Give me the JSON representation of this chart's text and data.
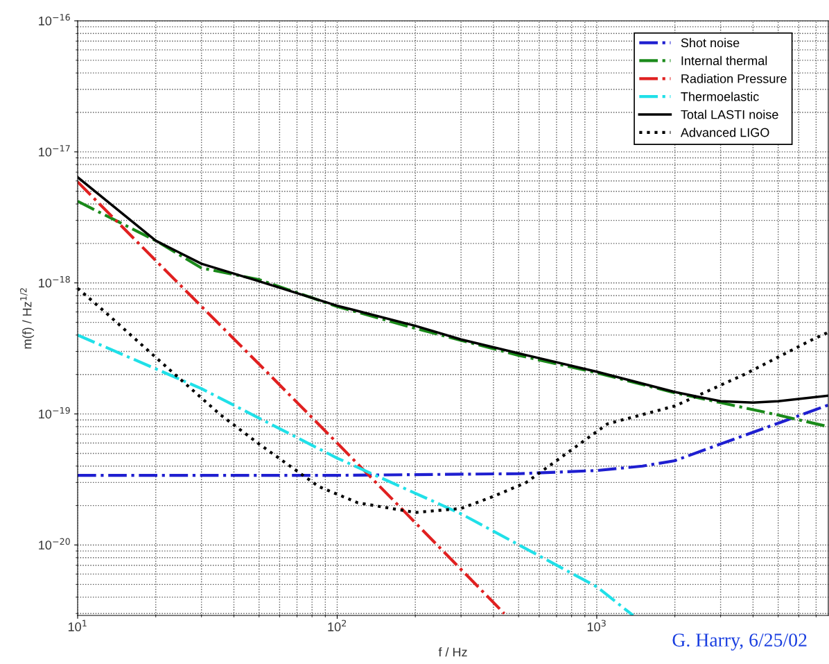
{
  "chart_data": {
    "type": "line",
    "xlabel": "f / Hz",
    "ylabel": "m(f) / Hz$^{1/2}$",
    "log": "xy",
    "grid": true,
    "legend": "top right",
    "xlim": [
      10,
      7800
    ],
    "ylim": [
      2.9e-21,
      1e-16
    ],
    "xticks": [
      {
        "value": 10,
        "label": "10$^{1}$"
      },
      {
        "value": 100,
        "label": "10$^{2}$"
      },
      {
        "value": 1000,
        "label": "10$^{3}$"
      }
    ],
    "yticks": [
      {
        "value": 1e-20,
        "label": "10$^{−20}$"
      },
      {
        "value": 1e-19,
        "label": "10$^{−19}$"
      },
      {
        "value": 1e-18,
        "label": "10$^{−18}$"
      },
      {
        "value": 1e-17,
        "label": "10$^{−17}$"
      },
      {
        "value": 1e-16,
        "label": "10$^{−16}$"
      }
    ],
    "annotations": [
      "G. Harry, 6/25/02"
    ],
    "series": [
      {
        "name": "Shot noise",
        "color": "#1f1fd0",
        "line_style": "dashdot",
        "x": [
          10,
          100,
          500,
          1000,
          1500,
          2000,
          3000,
          5000,
          7800
        ],
        "values": [
          3.4e-20,
          3.4e-20,
          3.5e-20,
          3.7e-20,
          4e-20,
          4.4e-20,
          5.9e-20,
          8.5e-20,
          1.17e-19
        ]
      },
      {
        "name": "Internal thermal",
        "color": "#1a8a1a",
        "line_style": "dashdot",
        "x": [
          10,
          20,
          30,
          50,
          100,
          200,
          500,
          1000,
          2000,
          3000,
          5000,
          7800
        ],
        "values": [
          4.2e-18,
          2.1e-18,
          1.3e-18,
          1.06e-18,
          6.6e-19,
          4.5e-19,
          2.8e-19,
          2.06e-19,
          1.45e-19,
          1.22e-19,
          9.8e-20,
          8e-20
        ]
      },
      {
        "name": "Radiation Pressure",
        "color": "#e02020",
        "line_style": "dashdot",
        "x": [
          10,
          20,
          50,
          100,
          200,
          440
        ],
        "values": [
          5.9e-18,
          1.48e-18,
          2.4e-19,
          6e-20,
          1.48e-20,
          3e-21
        ]
      },
      {
        "name": "Thermoelastic",
        "color": "#20e0e8",
        "line_style": "dashdot",
        "x": [
          10,
          30,
          100,
          300,
          1000,
          1380
        ],
        "values": [
          4e-19,
          1.56e-19,
          4.6e-20,
          1.73e-20,
          4.8e-21,
          2.9e-21
        ]
      },
      {
        "name": "Total LASTI noise",
        "color": "#000000",
        "line_style": "solid",
        "x": [
          10,
          20,
          30,
          50,
          100,
          200,
          300,
          500,
          1000,
          2000,
          3000,
          4000,
          5000,
          7800
        ],
        "values": [
          6.4e-18,
          2.1e-18,
          1.4e-18,
          1.03e-18,
          6.7e-19,
          4.7e-19,
          3.7e-19,
          2.9e-19,
          2.1e-19,
          1.47e-19,
          1.25e-19,
          1.22e-19,
          1.25e-19,
          1.38e-19
        ]
      },
      {
        "name": "Advanced LIGO",
        "color": "#000000",
        "line_style": "dotted",
        "x": [
          10,
          13,
          20,
          35.4,
          50,
          84.7,
          120,
          200,
          300,
          400,
          535,
          1100,
          2000,
          3700,
          6710,
          7800
        ],
        "values": [
          9.1e-19,
          5.8e-19,
          2.7e-19,
          9.9e-20,
          5.9e-20,
          2.8e-20,
          2.1e-20,
          1.77e-20,
          1.9e-20,
          2.35e-20,
          3e-20,
          8.4e-20,
          1.15e-19,
          2e-19,
          3.66e-19,
          4.2e-19
        ]
      }
    ]
  }
}
